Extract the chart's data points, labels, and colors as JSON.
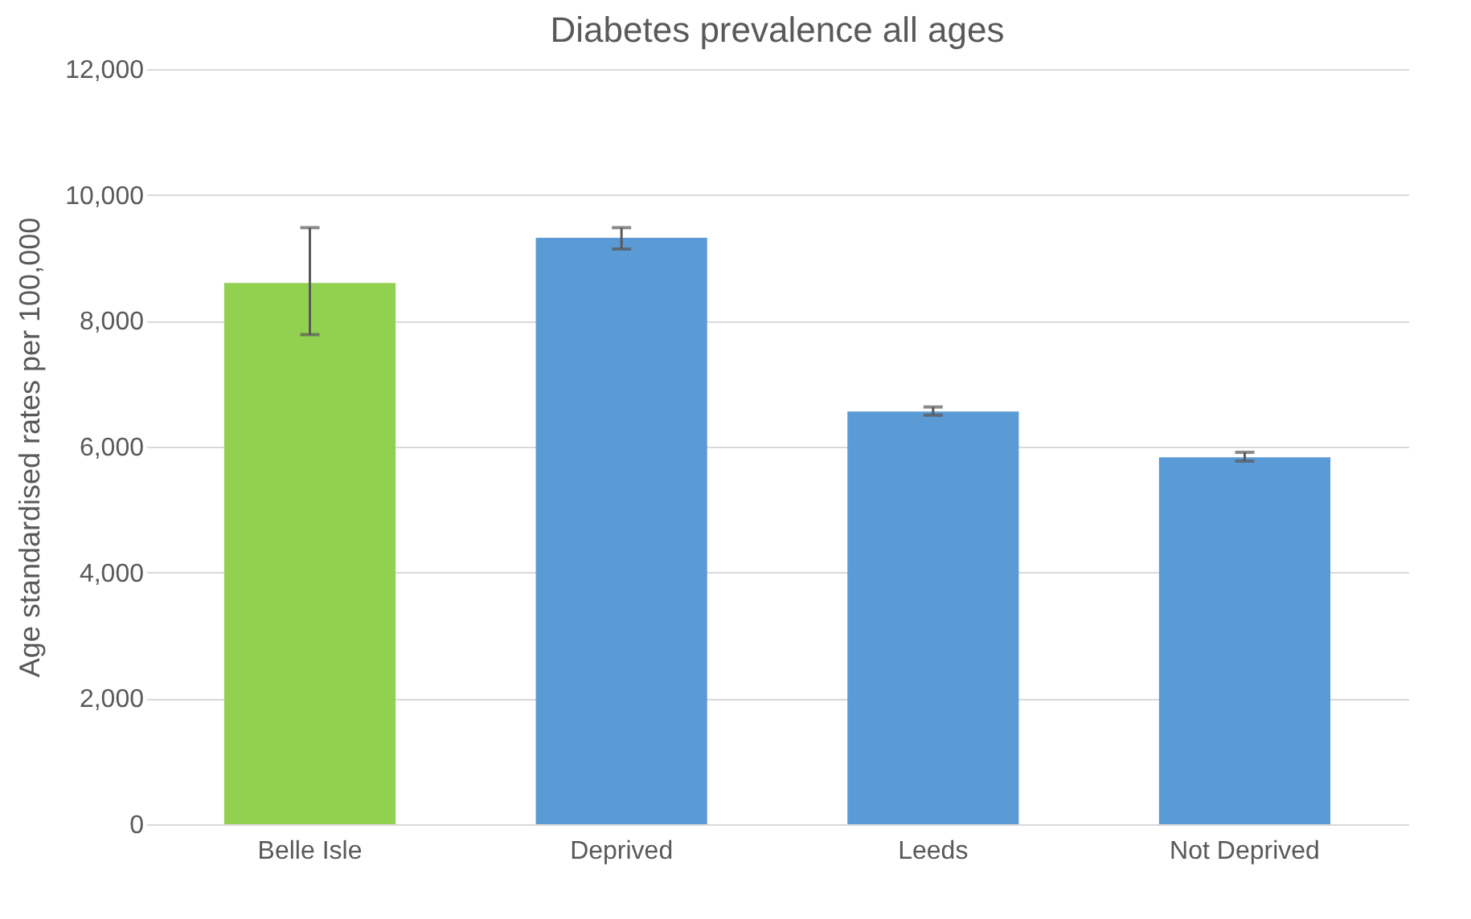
{
  "chart_data": {
    "type": "bar",
    "title": "Diabetes prevalence all ages",
    "ylabel": "Age standardised rates per 100,000",
    "categories": [
      "Belle Isle",
      "Deprived",
      "Leeds",
      "Not Deprived"
    ],
    "values": [
      8600,
      9320,
      6560,
      5830
    ],
    "colors": [
      "#92d050",
      "#5b9bd5",
      "#5b9bd5",
      "#5b9bd5"
    ],
    "errors": [
      [
        7780,
        9480
      ],
      [
        9140,
        9480
      ],
      [
        6500,
        6630
      ],
      [
        5770,
        5910
      ]
    ],
    "ylim": [
      0,
      12000
    ],
    "yticks": [
      0,
      {
        "value": 2000,
        "label": "2,000"
      },
      {
        "value": 4000,
        "label": "4,000"
      },
      {
        "value": 6000,
        "label": "6,000"
      },
      {
        "value": 8000,
        "label": "8,000"
      },
      {
        "value": 10000,
        "label": "10,000"
      },
      {
        "value": 12000,
        "label": "12,000"
      }
    ],
    "grid": "y"
  }
}
